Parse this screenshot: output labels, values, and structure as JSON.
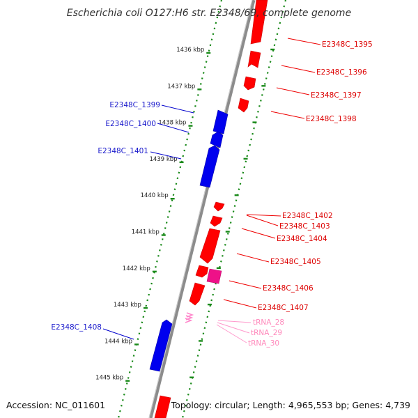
{
  "title": "Escherichia coli O127:H6 str. E2348/69, complete genome",
  "footer": {
    "accession": "Accession: NC_011601",
    "summary": "Topology: circular; Length: 4,965,553 bp; Genes: 4,739"
  },
  "colors": {
    "backbone": "#8c8c8c",
    "ruler": "#1a8a1a",
    "forward_gene": "#ff0000",
    "reverse_gene": "#0000ee",
    "trna": "#ff99cc",
    "other": "#ee1188"
  },
  "ruler_labels": [
    "1436 kbp",
    "1437 kbp",
    "1438 kbp",
    "1439 kbp",
    "1440 kbp",
    "1441 kbp",
    "1442 kbp",
    "1443 kbp",
    "1444 kbp",
    "1445 kbp"
  ],
  "reverse_genes": [
    "E2348C_1399",
    "E2348C_1400",
    "E2348C_1401",
    "E2348C_1408"
  ],
  "forward_genes": [
    "E2348C_1395",
    "E2348C_1396",
    "E2348C_1397",
    "E2348C_1398",
    "E2348C_1402",
    "E2348C_1403",
    "E2348C_1404",
    "E2348C_1405",
    "E2348C_1406",
    "E2348C_1407"
  ],
  "trnas": [
    "tRNA_28",
    "tRNA_29",
    "tRNA_30"
  ]
}
